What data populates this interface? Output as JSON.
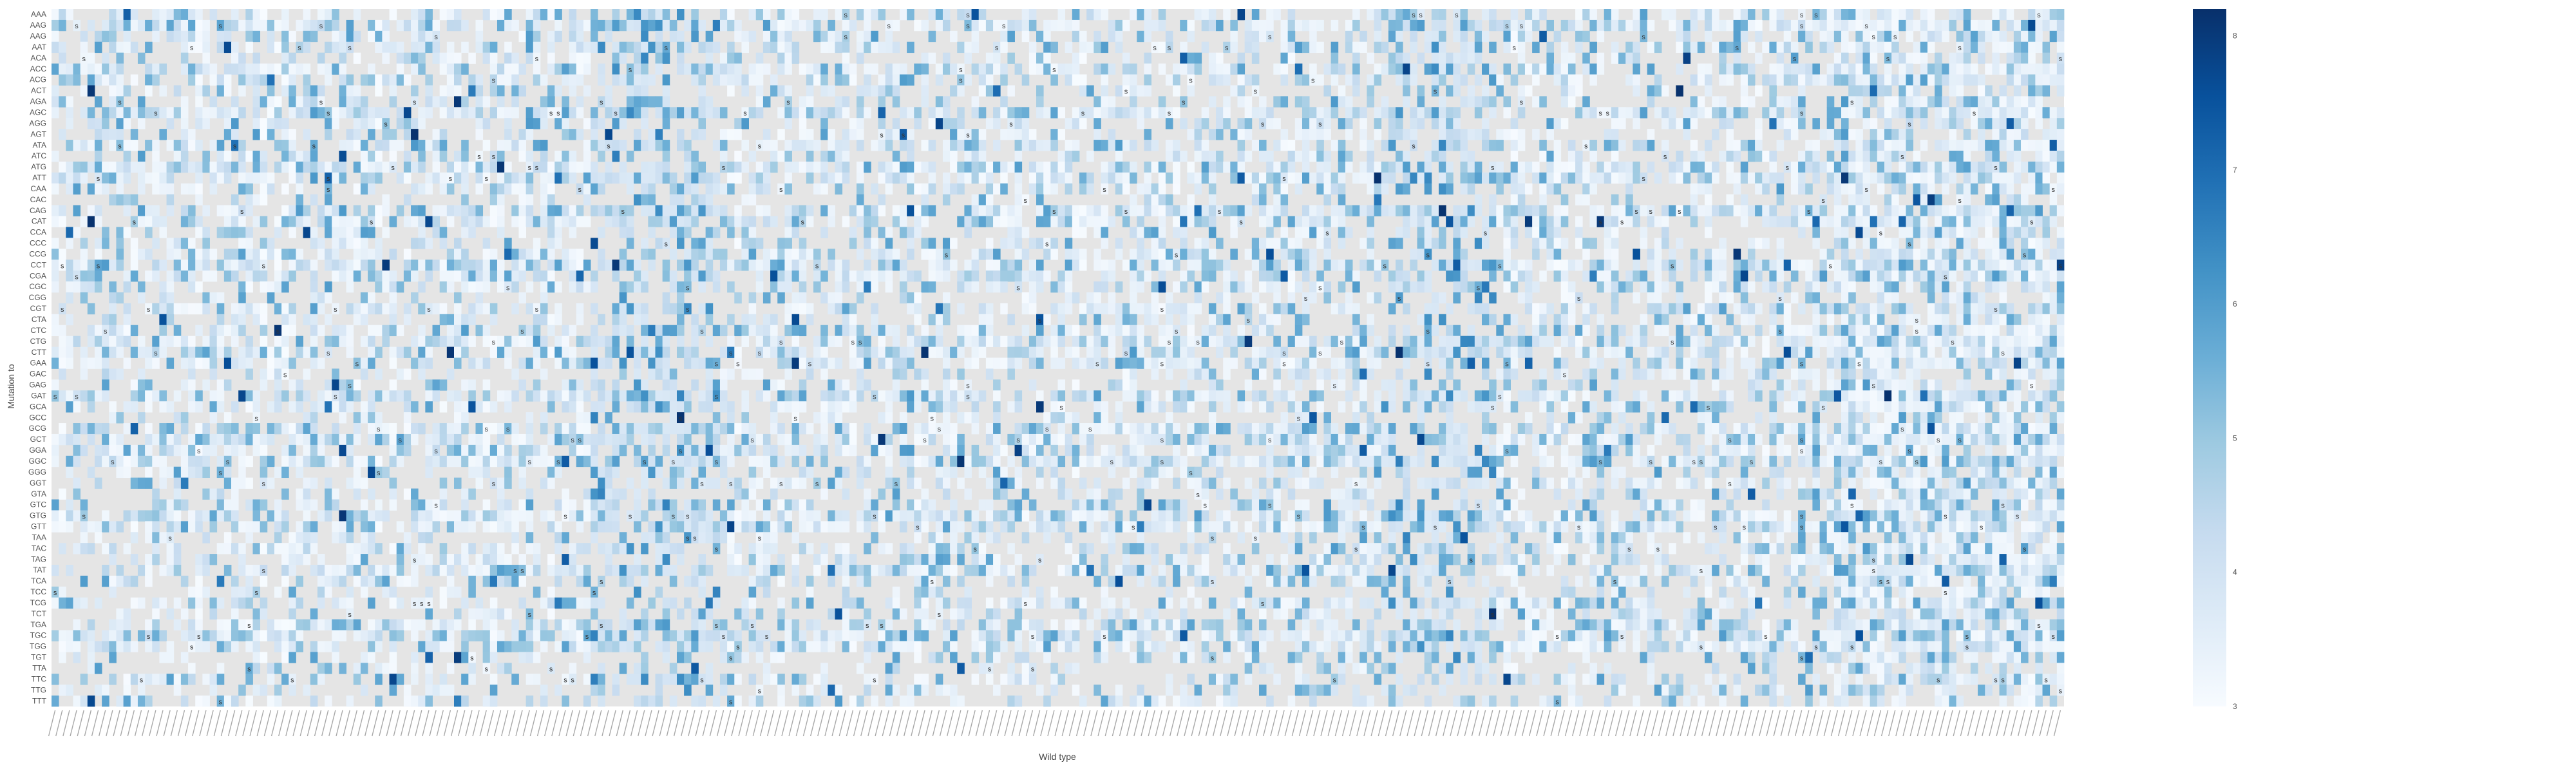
{
  "chart_data": {
    "type": "heatmap",
    "title": "",
    "xlabel": "Wild type",
    "ylabel": "Mutation to",
    "y_categories": [
      "AAA",
      "AAG",
      "AAG",
      "AAT",
      "ACA",
      "ACC",
      "ACG",
      "ACT",
      "AGA",
      "AGC",
      "AGG",
      "AGT",
      "ATA",
      "ATC",
      "ATG",
      "ATT",
      "CAA",
      "CAC",
      "CAG",
      "CAT",
      "CCA",
      "CCC",
      "CCG",
      "CCT",
      "CGA",
      "CGC",
      "CGG",
      "CGT",
      "CTA",
      "CTC",
      "CTG",
      "CTT",
      "GAA",
      "GAC",
      "GAG",
      "GAT",
      "GCA",
      "GCC",
      "GCG",
      "GCT",
      "GGA",
      "GGC",
      "GGG",
      "GGT",
      "GTA",
      "GTC",
      "GTG",
      "GTT",
      "TAA",
      "TAC",
      "TAG",
      "TAT",
      "TCA",
      "TCC",
      "TCG",
      "TCT",
      "TGA",
      "TGC",
      "TGG",
      "TGT",
      "TTA",
      "TTC",
      "TTG",
      "TTT"
    ],
    "x_category_count": 280,
    "x_tick_labels_note": "280 rotated codon labels along the x axis (illegible at this resolution)",
    "colorbar": {
      "min": 3,
      "max": 8.2,
      "ticks": [
        "3",
        "4",
        "5",
        "6",
        "7",
        "8"
      ],
      "colormap": "Blues"
    },
    "missing_color": "#e5e5e5",
    "marker_symbol": "s",
    "value_range": [
      3,
      8.2
    ]
  },
  "colors": {
    "background": "#ffffff",
    "missing": "#e5e5e5",
    "text": "#555555"
  }
}
